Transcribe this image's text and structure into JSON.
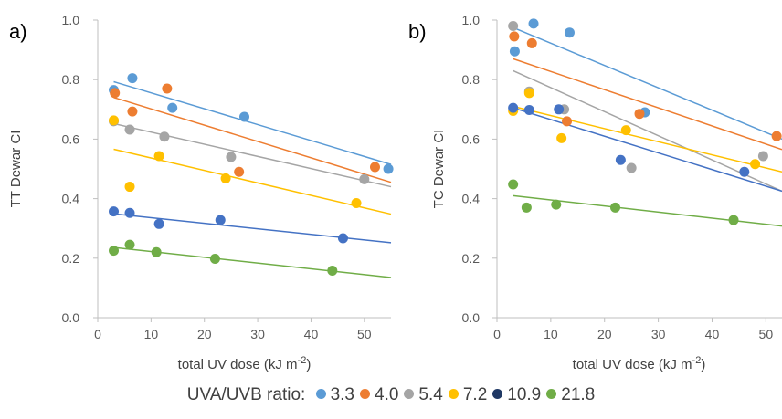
{
  "chart_data": [
    {
      "type": "scatter",
      "panel_label": "a)",
      "xlabel": "total UV dose (kJ m",
      "xlabel_sup": "-2",
      "xlabel_end": ")",
      "ylabel": "TT Dewar CI",
      "xlim": [
        0,
        55
      ],
      "ylim": [
        0,
        1.0
      ],
      "x_ticks": [
        0,
        10,
        20,
        30,
        40,
        50
      ],
      "y_ticks": [
        "0.0",
        "0.2",
        "0.4",
        "0.6",
        "0.8",
        "1.0"
      ],
      "trendlines": true,
      "series": [
        {
          "name": "3.3",
          "color": "#5B9BD5",
          "x": [
            3.0,
            6.5,
            14.0,
            27.5,
            54.5
          ],
          "y": [
            0.765,
            0.805,
            0.705,
            0.675,
            0.5
          ],
          "fit": [
            [
              3,
              0.793
            ],
            [
              55,
              0.515
            ]
          ]
        },
        {
          "name": "4.0",
          "color": "#ED7D31",
          "x": [
            3.2,
            6.5,
            13.0,
            26.5,
            52.0
          ],
          "y": [
            0.755,
            0.693,
            0.77,
            0.49,
            0.506
          ],
          "fit": [
            [
              3,
              0.74
            ],
            [
              55,
              0.455
            ]
          ]
        },
        {
          "name": "5.4",
          "color": "#A5A5A5",
          "x": [
            3.0,
            6.0,
            12.5,
            25.0,
            50.0
          ],
          "y": [
            0.66,
            0.632,
            0.608,
            0.54,
            0.465
          ],
          "fit": [
            [
              3,
              0.652
            ],
            [
              55,
              0.44
            ]
          ]
        },
        {
          "name": "7.2",
          "color": "#FFC000",
          "x": [
            3.0,
            6.0,
            11.5,
            24.0,
            48.5
          ],
          "y": [
            0.663,
            0.44,
            0.543,
            0.468,
            0.385
          ],
          "fit": [
            [
              3,
              0.566
            ],
            [
              55,
              0.348
            ]
          ]
        },
        {
          "name": "10.9",
          "color": "#4472C4",
          "x": [
            3.0,
            6.0,
            11.5,
            23.0,
            46.0
          ],
          "y": [
            0.357,
            0.352,
            0.315,
            0.328,
            0.267
          ],
          "fit": [
            [
              3,
              0.349
            ],
            [
              55,
              0.252
            ]
          ]
        },
        {
          "name": "21.8",
          "color": "#70AD47",
          "x": [
            3.0,
            6.0,
            11.0,
            22.0,
            44.0
          ],
          "y": [
            0.225,
            0.245,
            0.22,
            0.198,
            0.158
          ],
          "fit": [
            [
              3,
              0.236
            ],
            [
              55,
              0.135
            ]
          ]
        }
      ]
    },
    {
      "type": "scatter",
      "panel_label": "b)",
      "xlabel": "total UV dose (kJ m",
      "xlabel_sup": "-2",
      "xlabel_end": ")",
      "ylabel": "TC Dewar CI",
      "xlim": [
        0,
        53
      ],
      "ylim": [
        0,
        1.0
      ],
      "x_ticks": [
        0,
        10,
        20,
        30,
        40,
        50
      ],
      "y_ticks": [
        "0.0",
        "0.2",
        "0.4",
        "0.6",
        "0.8",
        "1.0"
      ],
      "trendlines": true,
      "series": [
        {
          "name": "3.3",
          "color": "#5B9BD5",
          "x": [
            3.3,
            6.8,
            13.5,
            27.5
          ],
          "y": [
            0.895,
            0.988,
            0.958,
            0.69
          ],
          "fit": [
            [
              3,
              0.975
            ],
            [
              53,
              0.6
            ]
          ]
        },
        {
          "name": "4.0",
          "color": "#ED7D31",
          "x": [
            3.2,
            6.5,
            13.0,
            26.5,
            52.0
          ],
          "y": [
            0.945,
            0.922,
            0.66,
            0.685,
            0.61
          ],
          "fit": [
            [
              3,
              0.87
            ],
            [
              53,
              0.565
            ]
          ]
        },
        {
          "name": "5.4",
          "color": "#A5A5A5",
          "x": [
            3.0,
            6.0,
            12.5,
            25.0,
            49.5
          ],
          "y": [
            0.98,
            0.76,
            0.7,
            0.503,
            0.543
          ],
          "fit": [
            [
              3,
              0.83
            ],
            [
              53,
              0.425
            ]
          ]
        },
        {
          "name": "7.2",
          "color": "#FFC000",
          "x": [
            3.0,
            6.0,
            12.0,
            24.0,
            48.0
          ],
          "y": [
            0.695,
            0.755,
            0.603,
            0.63,
            0.516
          ],
          "fit": [
            [
              3,
              0.71
            ],
            [
              53,
              0.49
            ]
          ]
        },
        {
          "name": "10.9",
          "color": "#4472C4",
          "x": [
            3.0,
            6.0,
            11.5,
            23.0,
            46.0
          ],
          "y": [
            0.705,
            0.698,
            0.7,
            0.53,
            0.49
          ],
          "fit": [
            [
              3,
              0.705
            ],
            [
              53,
              0.425
            ]
          ]
        },
        {
          "name": "21.8",
          "color": "#70AD47",
          "x": [
            3.0,
            5.5,
            11.0,
            22.0,
            44.0
          ],
          "y": [
            0.448,
            0.37,
            0.38,
            0.37,
            0.328
          ],
          "fit": [
            [
              3,
              0.41
            ],
            [
              53,
              0.308
            ]
          ]
        }
      ]
    }
  ],
  "legend": {
    "title": "UVA/UVB ratio:",
    "entries": [
      {
        "label": "3.3",
        "color": "#5B9BD5"
      },
      {
        "label": "4.0",
        "color": "#ED7D31"
      },
      {
        "label": "5.4",
        "color": "#A5A5A5"
      },
      {
        "label": "7.2",
        "color": "#FFC000"
      },
      {
        "label": "10.9",
        "color": "#1F3864"
      },
      {
        "label": "21.8",
        "color": "#70AD47"
      }
    ]
  }
}
